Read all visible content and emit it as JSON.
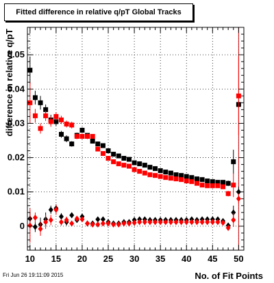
{
  "title": "Fitted difference in relative q/pT  Global Tracks",
  "footer": "Fri Jun 26 19:11:09 2015",
  "chart_data": {
    "type": "scatter",
    "title": "Fitted difference in relative q/pT  Global Tracks",
    "xlabel": "No. of Fit Points",
    "ylabel": "difference in relative q/pT",
    "xlim": [
      9.5,
      51
    ],
    "ylim": [
      -0.007,
      0.058
    ],
    "xticks": [
      10,
      15,
      20,
      25,
      30,
      35,
      40,
      45,
      50
    ],
    "yticks": [
      0,
      0.01,
      0.02,
      0.03,
      0.04,
      0.05
    ],
    "grid": true,
    "vertical_line_x": 50,
    "x": [
      10,
      11,
      12,
      13,
      14,
      15,
      16,
      17,
      18,
      19,
      20,
      21,
      22,
      23,
      24,
      25,
      26,
      27,
      28,
      29,
      30,
      31,
      32,
      33,
      34,
      35,
      36,
      37,
      38,
      39,
      40,
      41,
      42,
      43,
      44,
      45,
      46,
      47,
      48,
      49,
      50
    ],
    "series": [
      {
        "marker": "square",
        "color": "#000000",
        "values": [
          0.0455,
          0.0375,
          0.036,
          0.034,
          0.031,
          0.0305,
          0.0268,
          0.0255,
          0.024,
          0.0265,
          0.028,
          0.0265,
          0.0248,
          0.024,
          0.0235,
          0.022,
          0.021,
          0.0205,
          0.0198,
          0.0195,
          0.0185,
          0.0182,
          0.0178,
          0.0172,
          0.0168,
          0.0162,
          0.0158,
          0.0155,
          0.015,
          0.0148,
          0.0145,
          0.0142,
          0.0138,
          0.0136,
          0.0132,
          0.013,
          0.0128,
          0.0128,
          0.0125,
          0.0188,
          0.0355
        ],
        "errors": [
          0.004,
          0.002,
          0.002,
          0.0015,
          0.0015,
          0.0012,
          0.001,
          0.001,
          0.0008,
          0.0008,
          0.0008,
          0.0007,
          0.0006,
          0.0006,
          0.0005,
          0.0005,
          0.0005,
          0.0005,
          0.0004,
          0.0004,
          0.0004,
          0.0004,
          0.0004,
          0.0004,
          0.0004,
          0.0004,
          0.0004,
          0.0004,
          0.0004,
          0.0004,
          0.0004,
          0.0004,
          0.0004,
          0.0004,
          0.0004,
          0.0005,
          0.0005,
          0.0006,
          0.0008,
          0.0035,
          0.001
        ]
      },
      {
        "marker": "square",
        "color": "#ff0000",
        "values": [
          0.036,
          0.0322,
          0.0285,
          0.0322,
          0.0305,
          0.032,
          0.031,
          0.0298,
          0.0295,
          0.0262,
          0.0262,
          0.0262,
          0.0262,
          0.0225,
          0.0212,
          0.0198,
          0.0188,
          0.0182,
          0.0178,
          0.0175,
          0.0165,
          0.016,
          0.0155,
          0.015,
          0.0148,
          0.0145,
          0.0142,
          0.014,
          0.0138,
          0.0136,
          0.0132,
          0.013,
          0.0125,
          0.012,
          0.0118,
          0.0118,
          0.0118,
          0.0115,
          0.0095,
          0.012,
          0.038
        ],
        "errors": [
          0.006,
          0.002,
          0.0015,
          0.0015,
          0.0015,
          0.0012,
          0.0012,
          0.001,
          0.001,
          0.0008,
          0.0008,
          0.0008,
          0.0006,
          0.0006,
          0.0006,
          0.0005,
          0.0005,
          0.0005,
          0.0005,
          0.0004,
          0.0004,
          0.0004,
          0.0004,
          0.0004,
          0.0004,
          0.0004,
          0.0004,
          0.0004,
          0.0004,
          0.0004,
          0.0004,
          0.0004,
          0.0004,
          0.0004,
          0.0004,
          0.0005,
          0.0005,
          0.0006,
          0.0008,
          0.0035,
          0.0115
        ]
      },
      {
        "marker": "diamond",
        "color": "#000000",
        "values": [
          0.0022,
          -0.0002,
          0.0005,
          0.002,
          0.0048,
          0.0052,
          0.0028,
          0.0012,
          0.0032,
          0.0018,
          0.0028,
          0.0008,
          0.0008,
          0.002,
          0.002,
          0.0012,
          0.0008,
          0.0008,
          0.0012,
          0.0012,
          0.0018,
          0.002,
          0.002,
          0.0018,
          0.0018,
          0.0018,
          0.0018,
          0.0018,
          0.0018,
          0.0018,
          0.0018,
          0.002,
          0.0018,
          0.002,
          0.002,
          0.002,
          0.002,
          0.0015,
          0.0002,
          0.004,
          0.01
        ],
        "errors": [
          0.002,
          0.0015,
          0.002,
          0.002,
          0.0012,
          0.0012,
          0.001,
          0.001,
          0.0008,
          0.0008,
          0.0006,
          0.0005,
          0.0005,
          0.0004,
          0.0004,
          0.0004,
          0.0004,
          0.0004,
          0.0004,
          0.0004,
          0.0003,
          0.0003,
          0.0003,
          0.0003,
          0.0003,
          0.0003,
          0.0003,
          0.0003,
          0.0003,
          0.0003,
          0.0003,
          0.0003,
          0.0003,
          0.0003,
          0.0003,
          0.0003,
          0.0004,
          0.0005,
          0.0008,
          0.002,
          0.0015
        ]
      },
      {
        "marker": "diamond",
        "color": "#ff0000",
        "values": [
          0.0002,
          0.0025,
          -0.0008,
          0.0012,
          0.0018,
          0.0048,
          0.0012,
          0.0018,
          0.0008,
          0.0022,
          0.002,
          0.0008,
          0.0005,
          0.0005,
          0.0008,
          0.0008,
          0.0005,
          0.0005,
          0.0008,
          0.0008,
          0.001,
          0.0012,
          0.0012,
          0.0012,
          0.0012,
          0.0012,
          0.0012,
          0.0012,
          0.0012,
          0.0012,
          0.0012,
          0.0012,
          0.0012,
          0.0012,
          0.0012,
          0.0012,
          0.0012,
          0.001,
          -0.0005,
          0.0018,
          0.008
        ],
        "errors": [
          0.005,
          0.0015,
          0.002,
          0.002,
          0.0015,
          0.0015,
          0.001,
          0.001,
          0.0008,
          0.0008,
          0.0006,
          0.0005,
          0.0005,
          0.0004,
          0.0004,
          0.0004,
          0.0004,
          0.0004,
          0.0004,
          0.0004,
          0.0003,
          0.0003,
          0.0003,
          0.0003,
          0.0003,
          0.0003,
          0.0003,
          0.0003,
          0.0003,
          0.0003,
          0.0003,
          0.0003,
          0.0003,
          0.0003,
          0.0003,
          0.0003,
          0.0004,
          0.0005,
          0.0008,
          0.002,
          0.0015
        ]
      }
    ]
  }
}
